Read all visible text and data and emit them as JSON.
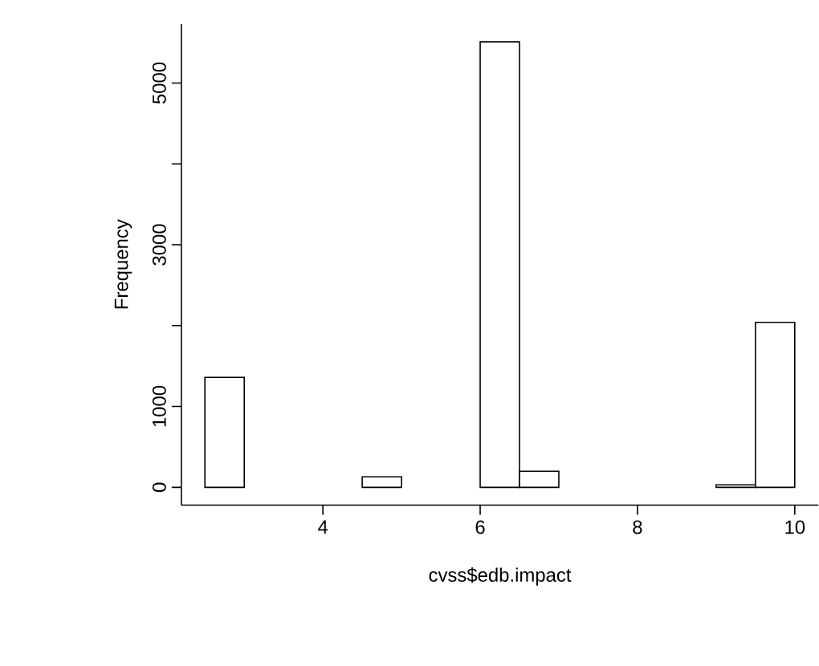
{
  "chart_data": {
    "type": "histogram",
    "xlabel": "cvss$edb.impact",
    "ylabel": "Frequency",
    "bins": [
      2.5,
      3,
      3.5,
      4,
      4.5,
      5,
      5.5,
      6,
      6.5,
      7,
      7.5,
      8,
      8.5,
      9,
      9.5,
      10
    ],
    "values": [
      1360,
      0,
      0,
      0,
      130,
      0,
      0,
      5510,
      200,
      0,
      0,
      0,
      0,
      30,
      2040
    ],
    "color": "#ffffff",
    "xlim": [
      2.2,
      10.3
    ],
    "ylim": [
      -220,
      5730
    ],
    "xticks": [
      4,
      6,
      8,
      10
    ],
    "yticks": [
      0,
      1000,
      {
        "value": 2000,
        "label": null
      },
      3000,
      {
        "value": 4000,
        "label": null
      },
      5000
    ],
    "grid": false
  }
}
